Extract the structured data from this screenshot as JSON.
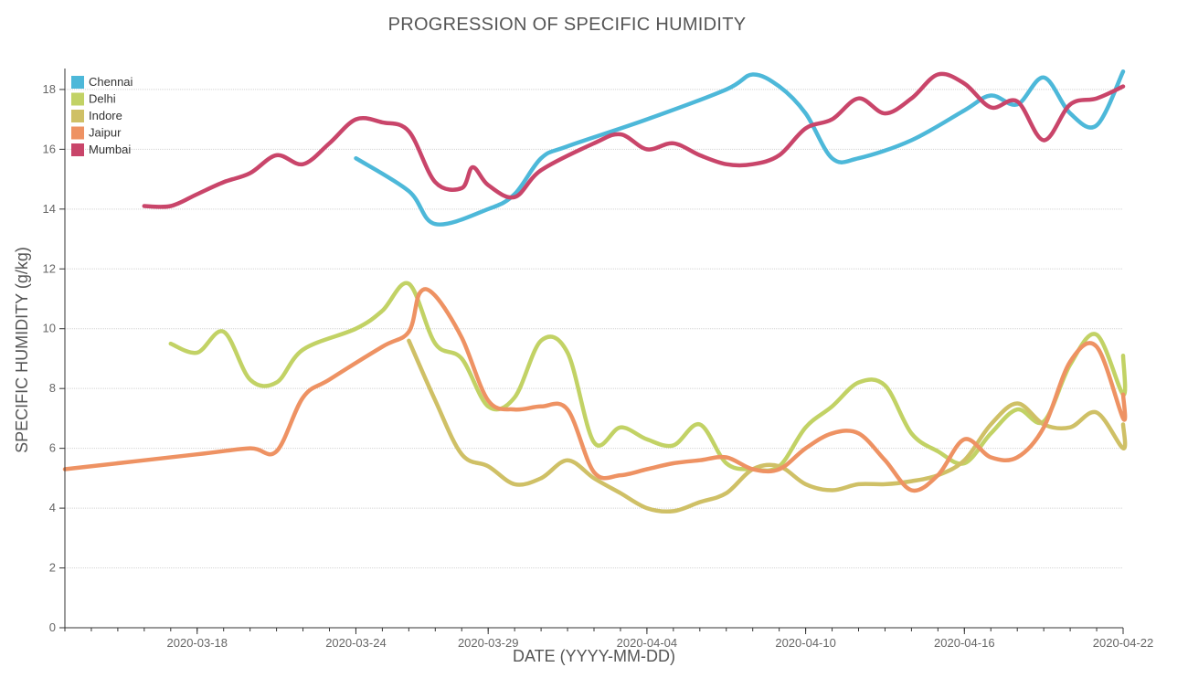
{
  "chart_data": {
    "type": "line",
    "title": "PROGRESSION OF SPECIFIC HUMIDITY",
    "xlabel": "DATE (YYYY-MM-DD)",
    "ylabel": "SPECIFIC HUMIDITY (g/kg)",
    "ylim": [
      0,
      18.7
    ],
    "xlim": [
      "2020-03-13",
      "2020-04-22"
    ],
    "yticks": [
      "0",
      "2",
      "4",
      "6",
      "8",
      "10",
      "12",
      "14",
      "16",
      "18"
    ],
    "xticks": [
      "2020-03-18",
      "2020-03-24",
      "2020-03-29",
      "2020-04-04",
      "2020-04-10",
      "2020-04-16",
      "2020-04-22"
    ],
    "grid": "horizontal",
    "legend_position": "top-left",
    "series": [
      {
        "name": "Chennai",
        "color": "#4db8d9",
        "points": [
          [
            "2020-03-24",
            15.7
          ],
          [
            "2020-03-26",
            14.6
          ],
          [
            "2020-03-27",
            13.5
          ],
          [
            "2020-03-29",
            14.0
          ],
          [
            "2020-03-30",
            14.5
          ],
          [
            "2020-03-31",
            15.7
          ],
          [
            "2020-04-01",
            16.1
          ],
          [
            "2020-04-04",
            17.0
          ],
          [
            "2020-04-07",
            18.0
          ],
          [
            "2020-04-08",
            18.5
          ],
          [
            "2020-04-09",
            18.1
          ],
          [
            "2020-04-10",
            17.2
          ],
          [
            "2020-04-11",
            15.7
          ],
          [
            "2020-04-12",
            15.7
          ],
          [
            "2020-04-14",
            16.3
          ],
          [
            "2020-04-16",
            17.3
          ],
          [
            "2020-04-17",
            17.8
          ],
          [
            "2020-04-18",
            17.5
          ],
          [
            "2020-04-19",
            18.4
          ],
          [
            "2020-04-20",
            17.2
          ],
          [
            "2020-04-21",
            16.8
          ],
          [
            "2020-04-22",
            18.6
          ]
        ]
      },
      {
        "name": "Delhi",
        "color": "#c2d265",
        "points": [
          [
            "2020-03-17",
            9.5
          ],
          [
            "2020-03-18",
            9.2
          ],
          [
            "2020-03-19",
            9.9
          ],
          [
            "2020-03-20",
            8.3
          ],
          [
            "2020-03-21",
            8.2
          ],
          [
            "2020-03-22",
            9.3
          ],
          [
            "2020-03-24",
            10.0
          ],
          [
            "2020-03-25",
            10.6
          ],
          [
            "2020-03-26",
            11.5
          ],
          [
            "2020-03-27",
            9.5
          ],
          [
            "2020-03-28",
            9.0
          ],
          [
            "2020-03-29",
            7.4
          ],
          [
            "2020-03-30",
            7.7
          ],
          [
            "2020-03-31",
            9.6
          ],
          [
            "2020-04-01",
            9.2
          ],
          [
            "2020-04-02",
            6.2
          ],
          [
            "2020-04-03",
            6.7
          ],
          [
            "2020-04-04",
            6.3
          ],
          [
            "2020-04-05",
            6.1
          ],
          [
            "2020-04-06",
            6.8
          ],
          [
            "2020-04-07",
            5.5
          ],
          [
            "2020-04-08",
            5.3
          ],
          [
            "2020-04-09",
            5.4
          ],
          [
            "2020-04-10",
            6.7
          ],
          [
            "2020-04-11",
            7.4
          ],
          [
            "2020-04-12",
            8.2
          ],
          [
            "2020-04-13",
            8.1
          ],
          [
            "2020-04-14",
            6.5
          ],
          [
            "2020-04-15",
            5.9
          ],
          [
            "2020-04-16",
            5.5
          ],
          [
            "2020-04-17",
            6.5
          ],
          [
            "2020-04-18",
            7.3
          ],
          [
            "2020-04-19",
            6.9
          ],
          [
            "2020-04-20",
            8.8
          ],
          [
            "2020-04-21",
            9.8
          ],
          [
            "2020-04-22",
            7.8
          ],
          [
            "2020-04-22",
            9.1
          ]
        ]
      },
      {
        "name": "Indore",
        "color": "#cfc066",
        "points": [
          [
            "2020-03-26",
            9.6
          ],
          [
            "2020-03-27",
            7.6
          ],
          [
            "2020-03-28",
            5.8
          ],
          [
            "2020-03-29",
            5.4
          ],
          [
            "2020-03-30",
            4.8
          ],
          [
            "2020-03-31",
            5.0
          ],
          [
            "2020-04-01",
            5.6
          ],
          [
            "2020-04-02",
            5.0
          ],
          [
            "2020-04-03",
            4.5
          ],
          [
            "2020-04-04",
            4.0
          ],
          [
            "2020-04-05",
            3.9
          ],
          [
            "2020-04-06",
            4.2
          ],
          [
            "2020-04-07",
            4.5
          ],
          [
            "2020-04-08",
            5.3
          ],
          [
            "2020-04-09",
            5.4
          ],
          [
            "2020-04-10",
            4.8
          ],
          [
            "2020-04-11",
            4.6
          ],
          [
            "2020-04-12",
            4.8
          ],
          [
            "2020-04-13",
            4.8
          ],
          [
            "2020-04-14",
            4.9
          ],
          [
            "2020-04-15",
            5.1
          ],
          [
            "2020-04-16",
            5.6
          ],
          [
            "2020-04-17",
            6.8
          ],
          [
            "2020-04-18",
            7.5
          ],
          [
            "2020-04-19",
            6.8
          ],
          [
            "2020-04-20",
            6.7
          ],
          [
            "2020-04-21",
            7.2
          ],
          [
            "2020-04-22",
            6.0
          ],
          [
            "2020-04-22",
            6.8
          ]
        ]
      },
      {
        "name": "Jaipur",
        "color": "#ee9263",
        "points": [
          [
            "2020-03-13",
            5.3
          ],
          [
            "2020-03-18",
            5.8
          ],
          [
            "2020-03-20",
            6.0
          ],
          [
            "2020-03-21",
            5.9
          ],
          [
            "2020-03-22",
            7.7
          ],
          [
            "2020-03-23",
            8.3
          ],
          [
            "2020-03-25",
            9.4
          ],
          [
            "2020-03-26",
            9.9
          ],
          [
            "2020-03-26",
            11.2
          ],
          [
            "2020-03-27",
            11.1
          ],
          [
            "2020-03-28",
            9.7
          ],
          [
            "2020-03-29",
            7.6
          ],
          [
            "2020-03-30",
            7.3
          ],
          [
            "2020-03-31",
            7.4
          ],
          [
            "2020-04-01",
            7.3
          ],
          [
            "2020-04-02",
            5.2
          ],
          [
            "2020-04-03",
            5.1
          ],
          [
            "2020-04-04",
            5.3
          ],
          [
            "2020-04-05",
            5.5
          ],
          [
            "2020-04-06",
            5.6
          ],
          [
            "2020-04-07",
            5.7
          ],
          [
            "2020-04-08",
            5.3
          ],
          [
            "2020-04-09",
            5.3
          ],
          [
            "2020-04-10",
            6.0
          ],
          [
            "2020-04-11",
            6.5
          ],
          [
            "2020-04-12",
            6.5
          ],
          [
            "2020-04-13",
            5.6
          ],
          [
            "2020-04-14",
            4.6
          ],
          [
            "2020-04-15",
            5.1
          ],
          [
            "2020-04-16",
            6.3
          ],
          [
            "2020-04-17",
            5.7
          ],
          [
            "2020-04-18",
            5.7
          ],
          [
            "2020-04-19",
            6.7
          ],
          [
            "2020-04-20",
            8.9
          ],
          [
            "2020-04-21",
            9.4
          ],
          [
            "2020-04-22",
            7.0
          ],
          [
            "2020-04-22",
            7.8
          ]
        ]
      },
      {
        "name": "Mumbai",
        "color": "#c9456a",
        "points": [
          [
            "2020-03-16",
            14.1
          ],
          [
            "2020-03-17",
            14.1
          ],
          [
            "2020-03-18",
            14.5
          ],
          [
            "2020-03-19",
            14.9
          ],
          [
            "2020-03-20",
            15.2
          ],
          [
            "2020-03-21",
            15.8
          ],
          [
            "2020-03-22",
            15.5
          ],
          [
            "2020-03-23",
            16.2
          ],
          [
            "2020-03-24",
            17.0
          ],
          [
            "2020-03-25",
            16.9
          ],
          [
            "2020-03-26",
            16.6
          ],
          [
            "2020-03-27",
            14.9
          ],
          [
            "2020-03-28",
            14.7
          ],
          [
            "2020-03-28",
            15.4
          ],
          [
            "2020-03-29",
            14.8
          ],
          [
            "2020-03-30",
            14.4
          ],
          [
            "2020-03-31",
            15.3
          ],
          [
            "2020-04-02",
            16.2
          ],
          [
            "2020-04-03",
            16.5
          ],
          [
            "2020-04-04",
            16.0
          ],
          [
            "2020-04-05",
            16.2
          ],
          [
            "2020-04-06",
            15.8
          ],
          [
            "2020-04-07",
            15.5
          ],
          [
            "2020-04-08",
            15.5
          ],
          [
            "2020-04-09",
            15.8
          ],
          [
            "2020-04-10",
            16.7
          ],
          [
            "2020-04-11",
            17.0
          ],
          [
            "2020-04-12",
            17.7
          ],
          [
            "2020-04-13",
            17.2
          ],
          [
            "2020-04-14",
            17.7
          ],
          [
            "2020-04-15",
            18.5
          ],
          [
            "2020-04-16",
            18.2
          ],
          [
            "2020-04-17",
            17.4
          ],
          [
            "2020-04-18",
            17.6
          ],
          [
            "2020-04-19",
            16.3
          ],
          [
            "2020-04-20",
            17.5
          ],
          [
            "2020-04-21",
            17.7
          ],
          [
            "2020-04-22",
            18.1
          ]
        ]
      }
    ]
  }
}
